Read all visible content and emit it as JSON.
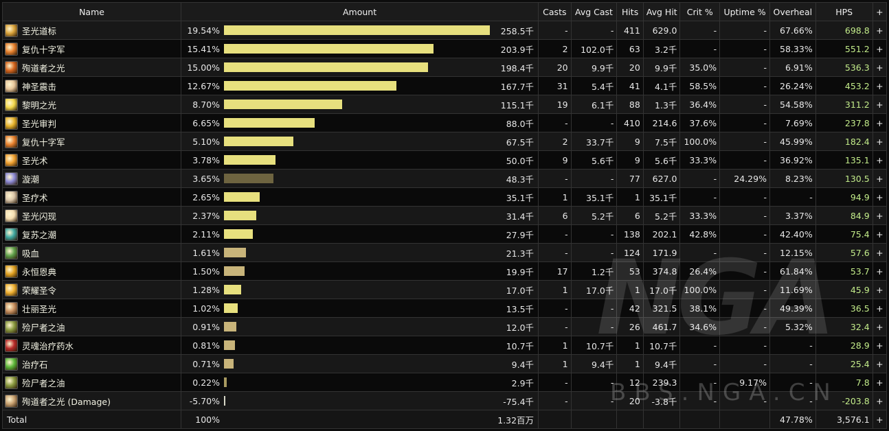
{
  "headers": {
    "name": "Name",
    "amount": "Amount",
    "casts": "Casts",
    "avg_cast": "Avg Cast",
    "hits": "Hits",
    "avg_hit": "Avg Hit",
    "crit": "Crit %",
    "uptime": "Uptime %",
    "overheal": "Overheal",
    "hps": "HPS",
    "plus": "+"
  },
  "rows": [
    {
      "icon": "holy-beacon-icon",
      "color": "#d9a23a",
      "name": "圣光道标",
      "pct": "19.54%",
      "fraction": 0.9876,
      "bar_color": "#e7e07e",
      "amount": "258.5千",
      "casts": "-",
      "avg_cast": "-",
      "hits": "411",
      "avg_hit": "629.0",
      "crit": "-",
      "uptime": "-",
      "overheal": "67.66%",
      "hps": "698.8",
      "plus": "+"
    },
    {
      "icon": "crusader-strike-icon",
      "color": "#e8812e",
      "name": "复仇十字军",
      "pct": "15.41%",
      "fraction": 0.7789,
      "bar_color": "#e7e07e",
      "amount": "203.9千",
      "casts": "2",
      "avg_cast": "102.0千",
      "hits": "63",
      "avg_hit": "3.2千",
      "crit": "-",
      "uptime": "-",
      "overheal": "58.33%",
      "hps": "551.2",
      "plus": "+"
    },
    {
      "icon": "martyr-light-icon",
      "color": "#d5651e",
      "name": "殉道者之光",
      "pct": "15.00%",
      "fraction": 0.758,
      "bar_color": "#e7e07e",
      "amount": "198.4千",
      "casts": "20",
      "avg_cast": "9.9千",
      "hits": "20",
      "avg_hit": "9.9千",
      "crit": "35.0%",
      "uptime": "-",
      "overheal": "6.91%",
      "hps": "536.3",
      "plus": "+"
    },
    {
      "icon": "holy-shock-icon",
      "color": "#e6c59a",
      "name": "神圣震击",
      "pct": "12.67%",
      "fraction": 0.6403,
      "bar_color": "#e7e07e",
      "amount": "167.7千",
      "casts": "31",
      "avg_cast": "5.4千",
      "hits": "41",
      "avg_hit": "4.1千",
      "crit": "58.5%",
      "uptime": "-",
      "overheal": "26.24%",
      "hps": "453.2",
      "plus": "+"
    },
    {
      "icon": "light-of-dawn-icon",
      "color": "#f2d64a",
      "name": "黎明之光",
      "pct": "8.70%",
      "fraction": 0.4397,
      "bar_color": "#e7e07e",
      "amount": "115.1千",
      "casts": "19",
      "avg_cast": "6.1千",
      "hits": "88",
      "avg_hit": "1.3千",
      "crit": "36.4%",
      "uptime": "-",
      "overheal": "54.58%",
      "hps": "311.2",
      "plus": "+"
    },
    {
      "icon": "judgment-of-light-icon",
      "color": "#e5b12a",
      "name": "圣光审判",
      "pct": "6.65%",
      "fraction": 0.3361,
      "bar_color": "#e7e07e",
      "amount": "88.0千",
      "casts": "-",
      "avg_cast": "-",
      "hits": "410",
      "avg_hit": "214.6",
      "crit": "37.6%",
      "uptime": "-",
      "overheal": "7.69%",
      "hps": "237.8",
      "plus": "+"
    },
    {
      "icon": "crusader-strike-icon",
      "color": "#e8812e",
      "name": "复仇十字军",
      "pct": "5.10%",
      "fraction": 0.2578,
      "bar_color": "#e7e07e",
      "amount": "67.5千",
      "casts": "2",
      "avg_cast": "33.7千",
      "hits": "9",
      "avg_hit": "7.5千",
      "crit": "100.0%",
      "uptime": "-",
      "overheal": "45.99%",
      "hps": "182.4",
      "plus": "+"
    },
    {
      "icon": "holy-light-icon",
      "color": "#f0a030",
      "name": "圣光术",
      "pct": "3.78%",
      "fraction": 0.191,
      "bar_color": "#e7e07e",
      "amount": "50.0千",
      "casts": "9",
      "avg_cast": "5.6千",
      "hits": "9",
      "avg_hit": "5.6千",
      "crit": "33.3%",
      "uptime": "-",
      "overheal": "36.92%",
      "hps": "135.1",
      "plus": "+"
    },
    {
      "icon": "vortex-icon",
      "color": "#8c8ad6",
      "name": "漩潮",
      "pct": "3.65%",
      "fraction": 0.1845,
      "bar_color": "#6e6440",
      "amount": "48.3千",
      "casts": "-",
      "avg_cast": "-",
      "hits": "77",
      "avg_hit": "627.0",
      "crit": "-",
      "uptime": "24.29%",
      "overheal": "8.23%",
      "hps": "130.5",
      "plus": "+"
    },
    {
      "icon": "holy-heal-icon",
      "color": "#d8c4a8",
      "name": "圣疗术",
      "pct": "2.65%",
      "fraction": 0.1339,
      "bar_color": "#e7e07e",
      "amount": "35.1千",
      "casts": "1",
      "avg_cast": "35.1千",
      "hits": "1",
      "avg_hit": "35.1千",
      "crit": "-",
      "uptime": "-",
      "overheal": "-",
      "hps": "94.9",
      "plus": "+"
    },
    {
      "icon": "flash-of-light-icon",
      "color": "#f3dcb0",
      "name": "圣光闪现",
      "pct": "2.37%",
      "fraction": 0.1198,
      "bar_color": "#e7e07e",
      "amount": "31.4千",
      "casts": "6",
      "avg_cast": "5.2千",
      "hits": "6",
      "avg_hit": "5.2千",
      "crit": "33.3%",
      "uptime": "-",
      "overheal": "3.37%",
      "hps": "84.9",
      "plus": "+"
    },
    {
      "icon": "revival-tide-icon",
      "color": "#3fa8a0",
      "name": "复苏之潮",
      "pct": "2.11%",
      "fraction": 0.1066,
      "bar_color": "#e7e07e",
      "amount": "27.9千",
      "casts": "-",
      "avg_cast": "-",
      "hits": "138",
      "avg_hit": "202.1",
      "crit": "42.8%",
      "uptime": "-",
      "overheal": "42.40%",
      "hps": "75.4",
      "plus": "+"
    },
    {
      "icon": "leech-icon",
      "color": "#5fa04a",
      "name": "吸血",
      "pct": "1.61%",
      "fraction": 0.0814,
      "bar_color": "#c8b47a",
      "amount": "21.3千",
      "casts": "-",
      "avg_cast": "-",
      "hits": "124",
      "avg_hit": "171.9",
      "crit": "-",
      "uptime": "-",
      "overheal": "12.15%",
      "hps": "57.6",
      "plus": "+"
    },
    {
      "icon": "eternal-grace-icon",
      "color": "#e0a020",
      "name": "永恒恩典",
      "pct": "1.50%",
      "fraction": 0.0758,
      "bar_color": "#c8b47a",
      "amount": "19.9千",
      "casts": "17",
      "avg_cast": "1.2千",
      "hits": "53",
      "avg_hit": "374.8",
      "crit": "26.4%",
      "uptime": "-",
      "overheal": "61.84%",
      "hps": "53.7",
      "plus": "+"
    },
    {
      "icon": "glory-decree-icon",
      "color": "#f0b030",
      "name": "荣耀圣令",
      "pct": "1.28%",
      "fraction": 0.0647,
      "bar_color": "#e7e07e",
      "amount": "17.0千",
      "casts": "1",
      "avg_cast": "17.0千",
      "hits": "1",
      "avg_hit": "17.0千",
      "crit": "100.0%",
      "uptime": "-",
      "overheal": "11.69%",
      "hps": "45.9",
      "plus": "+"
    },
    {
      "icon": "resplendent-light-icon",
      "color": "#c89060",
      "name": "壮丽圣光",
      "pct": "1.02%",
      "fraction": 0.0516,
      "bar_color": "#e7e07e",
      "amount": "13.5千",
      "casts": "-",
      "avg_cast": "-",
      "hits": "42",
      "avg_hit": "321.5",
      "crit": "38.1%",
      "uptime": "-",
      "overheal": "49.39%",
      "hps": "36.5",
      "plus": "+"
    },
    {
      "icon": "embalmer-oil-icon",
      "color": "#8a9a40",
      "name": "殓尸者之油",
      "pct": "0.91%",
      "fraction": 0.046,
      "bar_color": "#c8b47a",
      "amount": "12.0千",
      "casts": "-",
      "avg_cast": "-",
      "hits": "26",
      "avg_hit": "461.7",
      "crit": "34.6%",
      "uptime": "-",
      "overheal": "5.32%",
      "hps": "32.4",
      "plus": "+"
    },
    {
      "icon": "soul-potion-icon",
      "color": "#b82a2a",
      "name": "灵魂治疗药水",
      "pct": "0.81%",
      "fraction": 0.041,
      "bar_color": "#c8b47a",
      "amount": "10.7千",
      "casts": "1",
      "avg_cast": "10.7千",
      "hits": "1",
      "avg_hit": "10.7千",
      "crit": "-",
      "uptime": "-",
      "overheal": "-",
      "hps": "28.9",
      "plus": "+"
    },
    {
      "icon": "healthstone-icon",
      "color": "#5cb83a",
      "name": "治疗石",
      "pct": "0.71%",
      "fraction": 0.0359,
      "bar_color": "#c8b47a",
      "amount": "9.4千",
      "casts": "1",
      "avg_cast": "9.4千",
      "hits": "1",
      "avg_hit": "9.4千",
      "crit": "-",
      "uptime": "-",
      "overheal": "-",
      "hps": "25.4",
      "plus": "+"
    },
    {
      "icon": "embalmer-oil-icon",
      "color": "#8a9a40",
      "name": "殓尸者之油",
      "pct": "0.22%",
      "fraction": 0.0111,
      "bar_color": "#a89a60",
      "amount": "2.9千",
      "casts": "-",
      "avg_cast": "-",
      "hits": "12",
      "avg_hit": "239.3",
      "crit": "-",
      "uptime": "9.17%",
      "overheal": "-",
      "hps": "7.8",
      "plus": "+"
    },
    {
      "icon": "martyr-light-damage-icon",
      "color": "#c8a070",
      "name": "殉道者之光 (Damage)",
      "pct": "-5.70%",
      "fraction": 0.004,
      "bar_color": "#d8d8c8",
      "amount": "-75.4千",
      "casts": "-",
      "avg_cast": "-",
      "hits": "20",
      "avg_hit": "-3.8千",
      "crit": "-",
      "uptime": "-",
      "overheal": "-",
      "hps": "-203.8",
      "plus": "+"
    }
  ],
  "total": {
    "label": "Total",
    "pct": "100%",
    "amount": "1.32百万",
    "overheal": "47.78%",
    "hps": "3,576.1",
    "plus": "+"
  },
  "watermark": {
    "logo": "NGA",
    "url": "BBS.NGA.CN"
  }
}
